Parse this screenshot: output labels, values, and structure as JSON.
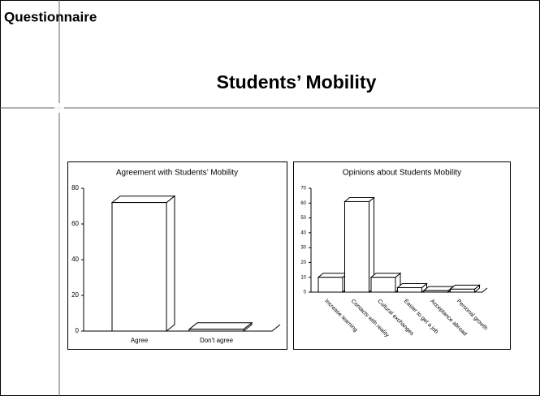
{
  "header": "Questionnaire",
  "title": "Students’ Mobility",
  "chart_data": [
    {
      "type": "bar",
      "title": "Agreement with Students’ Mobility",
      "categories": [
        "Agree",
        "Don't agree"
      ],
      "values": [
        72,
        1
      ],
      "color": "#ffffff",
      "ylim": [
        0,
        80
      ],
      "yticks": [
        0,
        20,
        40,
        60,
        80
      ]
    },
    {
      "type": "bar",
      "title": "Opinions about Students Mobility",
      "categories": [
        "Increase learning",
        "Contacts with reality",
        "Cultural exchanges",
        "Easier to get a job",
        "Acceptance abroad",
        "Personal growth"
      ],
      "values": [
        10,
        61,
        10,
        3,
        1,
        2
      ],
      "color": "#ffffff",
      "ylim": [
        0,
        70
      ],
      "yticks": [
        0,
        10,
        20,
        30,
        40,
        50,
        60,
        70
      ]
    }
  ]
}
